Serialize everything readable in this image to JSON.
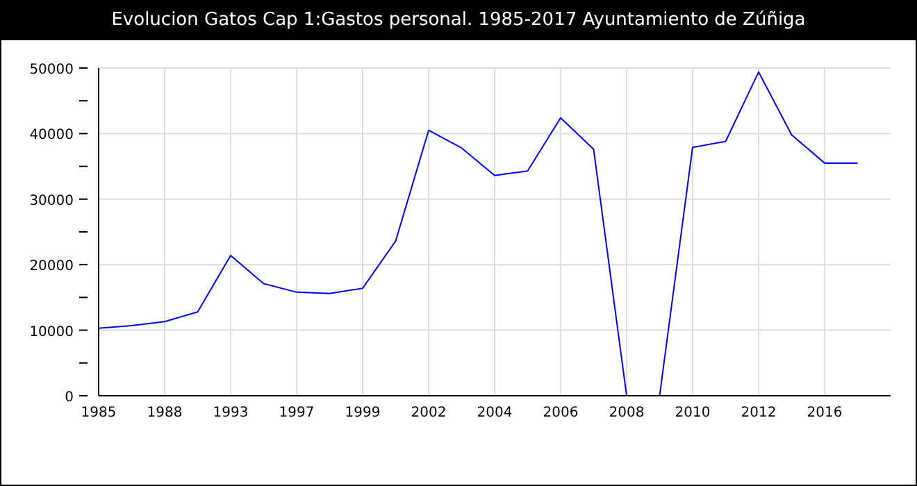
{
  "chart_data": {
    "type": "line",
    "title": "Evolucion Gatos Cap 1:Gastos personal. 1985-2017 Ayuntamiento de Zúñiga",
    "categories": [
      "1985",
      null,
      "1988",
      null,
      "1993",
      null,
      "1997",
      null,
      "1999",
      null,
      "2002",
      null,
      "2004",
      null,
      "2006",
      null,
      "2008",
      null,
      "2010",
      null,
      "2012",
      null,
      "2016",
      null
    ],
    "series": [
      {
        "color": "#0000ff",
        "values": [
          10300,
          10700,
          11300,
          12800,
          21400,
          17100,
          15800,
          15600,
          16400,
          23600,
          40500,
          37800,
          33600,
          34300,
          42400,
          37600,
          0,
          0,
          37900,
          38800,
          49400,
          39800,
          35500,
          35500
        ]
      }
    ],
    "ylim": [
      0,
      50000
    ],
    "yticks": [
      0,
      {
        "value": 5000,
        "label": null
      },
      10000,
      {
        "value": 15000,
        "label": null
      },
      20000,
      {
        "value": 25000,
        "label": null
      },
      30000,
      {
        "value": 35000,
        "label": null
      },
      40000,
      {
        "value": 45000,
        "label": null
      },
      50000
    ],
    "grid": true,
    "legend": false,
    "marker": "none",
    "line_style": "solid"
  }
}
